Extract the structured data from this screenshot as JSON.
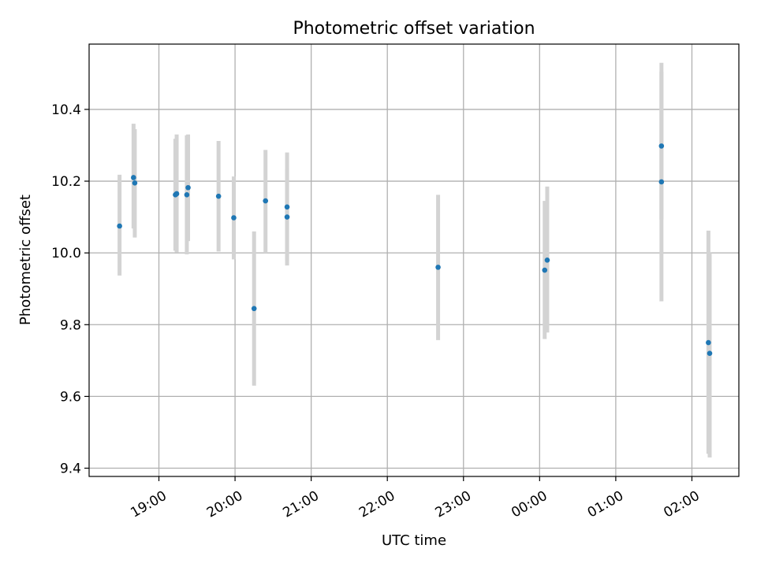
{
  "chart_data": {
    "type": "scatter",
    "title": "Photometric offset variation",
    "xlabel": "UTC time",
    "ylabel": "Photometric offset",
    "x_axis": "time (HH:MM, UTC)",
    "xlim": [
      "18:05",
      "02:37"
    ],
    "ylim": [
      9.377,
      10.582
    ],
    "x_ticks": [
      {
        "label": "19:00",
        "t": "19:00"
      },
      {
        "label": "20:00",
        "t": "20:00"
      },
      {
        "label": "21:00",
        "t": "21:00"
      },
      {
        "label": "22:00",
        "t": "22:00"
      },
      {
        "label": "23:00",
        "t": "23:00"
      },
      {
        "label": "00:00",
        "t": "00:00"
      },
      {
        "label": "01:00",
        "t": "01:00"
      },
      {
        "label": "02:00",
        "t": "02:00"
      }
    ],
    "y_ticks": [
      {
        "label": "9.4",
        "v": 9.4
      },
      {
        "label": "9.6",
        "v": 9.6
      },
      {
        "label": "9.8",
        "v": 9.8
      },
      {
        "label": "10.0",
        "v": 10.0
      },
      {
        "label": "10.2",
        "v": 10.2
      },
      {
        "label": "10.4",
        "v": 10.4
      }
    ],
    "grid": true,
    "marker_color": "#1f77b4",
    "errorbar_color": "#d3d3d3",
    "points": [
      {
        "t": "18:29",
        "y": 10.075,
        "lo": 9.937,
        "hi": 10.218
      },
      {
        "t": "18:40",
        "y": 10.21,
        "lo": 10.068,
        "hi": 10.36
      },
      {
        "t": "18:41",
        "y": 10.195,
        "lo": 10.043,
        "hi": 10.345
      },
      {
        "t": "19:13",
        "y": 10.162,
        "lo": 10.006,
        "hi": 10.318
      },
      {
        "t": "19:14",
        "y": 10.165,
        "lo": 10.001,
        "hi": 10.33
      },
      {
        "t": "19:22",
        "y": 10.162,
        "lo": 9.996,
        "hi": 10.328
      },
      {
        "t": "19:23",
        "y": 10.182,
        "lo": 10.033,
        "hi": 10.33
      },
      {
        "t": "19:47",
        "y": 10.158,
        "lo": 10.004,
        "hi": 10.312
      },
      {
        "t": "19:59",
        "y": 10.098,
        "lo": 9.982,
        "hi": 10.213
      },
      {
        "t": "20:15",
        "y": 9.845,
        "lo": 9.63,
        "hi": 10.06
      },
      {
        "t": "20:24",
        "y": 10.145,
        "lo": 10.0,
        "hi": 10.287
      },
      {
        "t": "20:41",
        "y": 10.1,
        "lo": 9.965,
        "hi": 10.235
      },
      {
        "t": "20:41",
        "y": 10.128,
        "lo": 9.978,
        "hi": 10.28
      },
      {
        "t": "22:40",
        "y": 9.96,
        "lo": 9.757,
        "hi": 10.162
      },
      {
        "t": "00:04",
        "y": 9.952,
        "lo": 9.76,
        "hi": 10.145
      },
      {
        "t": "00:06",
        "y": 9.98,
        "lo": 9.778,
        "hi": 10.185
      },
      {
        "t": "01:36",
        "y": 10.198,
        "lo": 9.865,
        "hi": 10.53
      },
      {
        "t": "01:36",
        "y": 10.298,
        "lo": 10.093,
        "hi": 10.505
      },
      {
        "t": "02:13",
        "y": 9.75,
        "lo": 9.44,
        "hi": 10.062
      },
      {
        "t": "02:14",
        "y": 9.72,
        "lo": 9.43,
        "hi": 10.0
      }
    ]
  }
}
